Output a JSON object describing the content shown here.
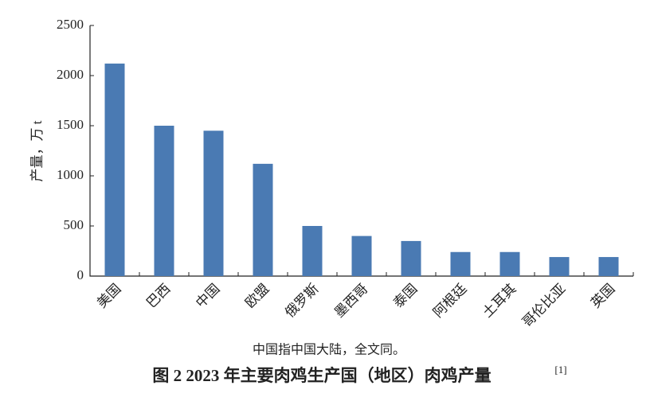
{
  "chart_data": {
    "type": "bar",
    "title": "图 2  2023 年主要肉鸡生产国（地区）肉鸡产量",
    "reference": "[1]",
    "note": "中国指中国大陆，全文同。",
    "y_label": "产量，万 t",
    "categories": [
      "美国",
      "巴西",
      "中国",
      "欧盟",
      "俄罗斯",
      "墨西哥",
      "泰国",
      "阿根廷",
      "土耳其",
      "哥伦比亚",
      "英国"
    ],
    "values": [
      2120,
      1500,
      1450,
      1120,
      500,
      400,
      350,
      240,
      240,
      190,
      190
    ],
    "color": "#4a7ab3",
    "ylim": [
      0,
      2500
    ],
    "yticks": [
      0,
      500,
      1000,
      1500,
      2000,
      2500
    ],
    "grid": false
  }
}
